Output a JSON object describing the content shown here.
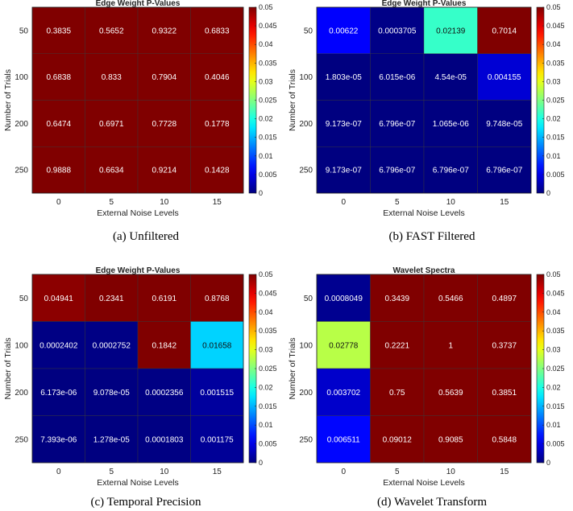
{
  "colormap": "jet",
  "chart_data": [
    {
      "type": "heatmap",
      "title": "Edge Weight P-Values",
      "caption": "(a) Unfiltered",
      "xlabel": "External Noise Levels",
      "ylabel": "Number of Trials",
      "x_categories": [
        "0",
        "5",
        "10",
        "15"
      ],
      "y_categories": [
        "50",
        "100",
        "200",
        "250"
      ],
      "values": [
        [
          0.3835,
          0.5652,
          0.9322,
          0.6833
        ],
        [
          0.6838,
          0.833,
          0.7904,
          0.4046
        ],
        [
          0.6474,
          0.6971,
          0.7728,
          0.1778
        ],
        [
          0.9888,
          0.6634,
          0.9214,
          0.1428
        ]
      ],
      "labels": [
        [
          "0.3835",
          "0.5652",
          "0.9322",
          "0.6833"
        ],
        [
          "0.6838",
          "0.833",
          "0.7904",
          "0.4046"
        ],
        [
          "0.6474",
          "0.6971",
          "0.7728",
          "0.1778"
        ],
        [
          "0.9888",
          "0.6634",
          "0.9214",
          "0.1428"
        ]
      ],
      "color_range": [
        0,
        0.05
      ],
      "colorbar_ticks": [
        "0",
        "0.005",
        "0.01",
        "0.015",
        "0.02",
        "0.025",
        "0.03",
        "0.035",
        "0.04",
        "0.045",
        "0.05"
      ]
    },
    {
      "type": "heatmap",
      "title": "Edge Weight P-Values",
      "caption": "(b) FAST Filtered",
      "xlabel": "External Noise Levels",
      "ylabel": "Number of Trials",
      "x_categories": [
        "0",
        "5",
        "10",
        "15"
      ],
      "y_categories": [
        "50",
        "100",
        "200",
        "250"
      ],
      "values": [
        [
          0.00622,
          0.0003705,
          0.02139,
          0.7014
        ],
        [
          1.803e-05,
          6.015e-06,
          4.54e-05,
          0.004155
        ],
        [
          9.173e-07,
          6.796e-07,
          1.065e-06,
          9.748e-05
        ],
        [
          9.173e-07,
          6.796e-07,
          6.796e-07,
          6.796e-07
        ]
      ],
      "labels": [
        [
          "0.00622",
          "0.0003705",
          "0.02139",
          "0.7014"
        ],
        [
          "1.803e-05",
          "6.015e-06",
          "4.54e-05",
          "0.004155"
        ],
        [
          "9.173e-07",
          "6.796e-07",
          "1.065e-06",
          "9.748e-05"
        ],
        [
          "9.173e-07",
          "6.796e-07",
          "6.796e-07",
          "6.796e-07"
        ]
      ],
      "color_range": [
        0,
        0.05
      ],
      "colorbar_ticks": [
        "0",
        "0.005",
        "0.01",
        "0.015",
        "0.02",
        "0.025",
        "0.03",
        "0.035",
        "0.04",
        "0.045",
        "0.05"
      ]
    },
    {
      "type": "heatmap",
      "title": "Edge Weight P-Values",
      "caption": "(c) Temporal Precision",
      "xlabel": "External Noise Levels",
      "ylabel": "Number of Trials",
      "x_categories": [
        "0",
        "5",
        "10",
        "15"
      ],
      "y_categories": [
        "50",
        "100",
        "200",
        "250"
      ],
      "values": [
        [
          0.04941,
          0.2341,
          0.6191,
          0.8768
        ],
        [
          0.0002402,
          0.0002752,
          0.1842,
          0.01658
        ],
        [
          6.173e-06,
          9.078e-05,
          0.0002356,
          0.001515
        ],
        [
          7.393e-06,
          1.278e-05,
          0.0001803,
          0.001175
        ]
      ],
      "labels": [
        [
          "0.04941",
          "0.2341",
          "0.6191",
          "0.8768"
        ],
        [
          "0.0002402",
          "0.0002752",
          "0.1842",
          "0.01658"
        ],
        [
          "6.173e-06",
          "9.078e-05",
          "0.0002356",
          "0.001515"
        ],
        [
          "7.393e-06",
          "1.278e-05",
          "0.0001803",
          "0.001175"
        ]
      ],
      "color_range": [
        0,
        0.05
      ],
      "colorbar_ticks": [
        "0",
        "0.005",
        "0.01",
        "0.015",
        "0.02",
        "0.025",
        "0.03",
        "0.035",
        "0.04",
        "0.045",
        "0.05"
      ]
    },
    {
      "type": "heatmap",
      "title": "Wavelet Spectra",
      "caption": "(d) Wavelet Transform",
      "xlabel": "External Noise Levels",
      "ylabel": "Number of Trials",
      "x_categories": [
        "0",
        "5",
        "10",
        "15"
      ],
      "y_categories": [
        "50",
        "100",
        "200",
        "250"
      ],
      "values": [
        [
          0.0008049,
          0.3439,
          0.5466,
          0.4897
        ],
        [
          0.02778,
          0.2221,
          1,
          0.3737
        ],
        [
          0.003702,
          0.75,
          0.5639,
          0.3851
        ],
        [
          0.006511,
          0.09012,
          0.9085,
          0.5848
        ]
      ],
      "labels": [
        [
          "0.0008049",
          "0.3439",
          "0.5466",
          "0.4897"
        ],
        [
          "0.02778",
          "0.2221",
          "1",
          "0.3737"
        ],
        [
          "0.003702",
          "0.75",
          "0.5639",
          "0.3851"
        ],
        [
          "0.006511",
          "0.09012",
          "0.9085",
          "0.5848"
        ]
      ],
      "color_range": [
        0,
        0.05
      ],
      "colorbar_ticks": [
        "0",
        "0.005",
        "0.01",
        "0.015",
        "0.02",
        "0.025",
        "0.03",
        "0.035",
        "0.04",
        "0.045",
        "0.05"
      ]
    }
  ]
}
